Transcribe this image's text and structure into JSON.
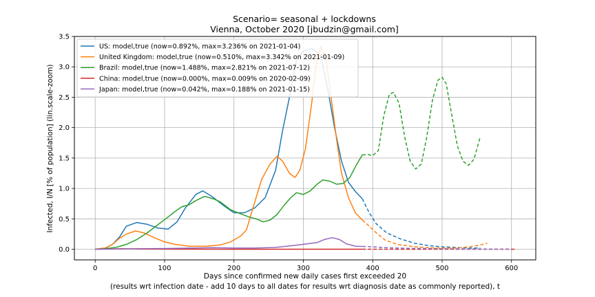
{
  "chart_data": {
    "type": "line",
    "title": "Scenario= seasonal + lockdowns",
    "subtitle": "Vienna, October 2020 [jbudzin@gmail.com]",
    "xlabel_line1": "Days since confirmed new daily cases first exceeded 20",
    "xlabel_line2": "(results wrt infection date - add 10 days to all dates for results wrt diagnosis date as commonly reported), t",
    "ylabel": "Infected, I/N [% of population] (lin.scale-zoom)",
    "xlim": [
      -30,
      635
    ],
    "ylim": [
      -0.175,
      3.5
    ],
    "xticks": [
      0,
      100,
      200,
      300,
      400,
      500,
      600
    ],
    "xtick_labels": [
      "0",
      "100",
      "200",
      "300",
      "400",
      "500",
      "600"
    ],
    "yticks": [
      0.0,
      0.5,
      1.0,
      1.5,
      2.0,
      2.5,
      3.0,
      3.5
    ],
    "ytick_labels": [
      "0.0",
      "0.5",
      "1.0",
      "1.5",
      "2.0",
      "2.5",
      "3.0",
      "3.5"
    ],
    "grid": true,
    "legend_position": "top-left",
    "series": [
      {
        "name": "US: model,true (now=0.892%, max=3.236% on 2021-01-04)",
        "color": "#1f77b4",
        "solid": [
          [
            0,
            0
          ],
          [
            15,
            0.02
          ],
          [
            25,
            0.08
          ],
          [
            35,
            0.2
          ],
          [
            45,
            0.38
          ],
          [
            60,
            0.44
          ],
          [
            75,
            0.41
          ],
          [
            90,
            0.35
          ],
          [
            105,
            0.33
          ],
          [
            118,
            0.45
          ],
          [
            130,
            0.68
          ],
          [
            145,
            0.9
          ],
          [
            155,
            0.96
          ],
          [
            168,
            0.87
          ],
          [
            185,
            0.72
          ],
          [
            200,
            0.6
          ],
          [
            215,
            0.6
          ],
          [
            230,
            0.68
          ],
          [
            245,
            0.85
          ],
          [
            260,
            1.3
          ],
          [
            270,
            1.95
          ],
          [
            280,
            2.5
          ],
          [
            290,
            3.1
          ],
          [
            300,
            3.26
          ],
          [
            312,
            3.3
          ],
          [
            325,
            3.2
          ],
          [
            335,
            2.65
          ],
          [
            345,
            2.0
          ],
          [
            355,
            1.45
          ],
          [
            365,
            1.1
          ],
          [
            375,
            0.95
          ],
          [
            385,
            0.83
          ]
        ],
        "dashed": [
          [
            385,
            0.83
          ],
          [
            395,
            0.6
          ],
          [
            405,
            0.42
          ],
          [
            420,
            0.27
          ],
          [
            440,
            0.17
          ],
          [
            460,
            0.1
          ],
          [
            480,
            0.06
          ],
          [
            500,
            0.04
          ],
          [
            520,
            0.03
          ],
          [
            540,
            0.02
          ],
          [
            555,
            0.02
          ]
        ]
      },
      {
        "name": "United Kingdom: model,true (now=0.510%, max=3.342% on 2021-01-09)",
        "color": "#ff7f0e",
        "solid": [
          [
            0,
            0
          ],
          [
            15,
            0.02
          ],
          [
            25,
            0.08
          ],
          [
            35,
            0.18
          ],
          [
            45,
            0.25
          ],
          [
            58,
            0.3
          ],
          [
            70,
            0.27
          ],
          [
            85,
            0.19
          ],
          [
            100,
            0.12
          ],
          [
            115,
            0.08
          ],
          [
            135,
            0.05
          ],
          [
            160,
            0.05
          ],
          [
            180,
            0.07
          ],
          [
            195,
            0.12
          ],
          [
            210,
            0.22
          ],
          [
            218,
            0.32
          ],
          [
            228,
            0.7
          ],
          [
            240,
            1.15
          ],
          [
            252,
            1.4
          ],
          [
            262,
            1.53
          ],
          [
            270,
            1.45
          ],
          [
            280,
            1.25
          ],
          [
            288,
            1.18
          ],
          [
            295,
            1.3
          ],
          [
            303,
            1.65
          ],
          [
            312,
            2.4
          ],
          [
            318,
            3.0
          ],
          [
            325,
            3.34
          ],
          [
            333,
            3.1
          ],
          [
            340,
            2.5
          ],
          [
            348,
            1.8
          ],
          [
            355,
            1.25
          ],
          [
            365,
            0.85
          ],
          [
            375,
            0.6
          ],
          [
            385,
            0.48
          ]
        ],
        "dashed": [
          [
            385,
            0.48
          ],
          [
            395,
            0.38
          ],
          [
            405,
            0.27
          ],
          [
            418,
            0.15
          ],
          [
            435,
            0.08
          ],
          [
            460,
            0.04
          ],
          [
            490,
            0.02
          ],
          [
            520,
            0.02
          ],
          [
            540,
            0.04
          ],
          [
            555,
            0.07
          ],
          [
            565,
            0.1
          ]
        ]
      },
      {
        "name": "Brazil: model,true (now=1.488%, max=2.821% on 2021-07-12)",
        "color": "#2ca02c",
        "solid": [
          [
            0,
            0
          ],
          [
            15,
            0.01
          ],
          [
            30,
            0.03
          ],
          [
            45,
            0.08
          ],
          [
            60,
            0.16
          ],
          [
            75,
            0.27
          ],
          [
            90,
            0.4
          ],
          [
            105,
            0.53
          ],
          [
            115,
            0.62
          ],
          [
            125,
            0.7
          ],
          [
            135,
            0.73
          ],
          [
            145,
            0.8
          ],
          [
            158,
            0.87
          ],
          [
            170,
            0.83
          ],
          [
            180,
            0.78
          ],
          [
            195,
            0.65
          ],
          [
            210,
            0.58
          ],
          [
            222,
            0.53
          ],
          [
            232,
            0.5
          ],
          [
            242,
            0.45
          ],
          [
            252,
            0.48
          ],
          [
            262,
            0.57
          ],
          [
            272,
            0.72
          ],
          [
            282,
            0.85
          ],
          [
            290,
            0.93
          ],
          [
            300,
            0.9
          ],
          [
            310,
            0.96
          ],
          [
            320,
            1.07
          ],
          [
            328,
            1.14
          ],
          [
            338,
            1.12
          ],
          [
            348,
            1.07
          ],
          [
            357,
            1.08
          ],
          [
            367,
            1.18
          ],
          [
            377,
            1.4
          ],
          [
            385,
            1.55
          ]
        ],
        "dashed": [
          [
            385,
            1.55
          ],
          [
            392,
            1.56
          ],
          [
            400,
            1.54
          ],
          [
            408,
            1.62
          ],
          [
            416,
            2.2
          ],
          [
            424,
            2.55
          ],
          [
            430,
            2.58
          ],
          [
            438,
            2.4
          ],
          [
            446,
            1.85
          ],
          [
            454,
            1.45
          ],
          [
            462,
            1.32
          ],
          [
            470,
            1.4
          ],
          [
            478,
            1.85
          ],
          [
            486,
            2.45
          ],
          [
            494,
            2.78
          ],
          [
            500,
            2.83
          ],
          [
            506,
            2.72
          ],
          [
            514,
            2.2
          ],
          [
            522,
            1.7
          ],
          [
            530,
            1.45
          ],
          [
            538,
            1.38
          ],
          [
            546,
            1.48
          ],
          [
            555,
            1.85
          ]
        ]
      },
      {
        "name": "China: model,true (now=0.000%, max=0.009% on 2020-02-09)",
        "color": "#d62728",
        "solid": [
          [
            0,
            0
          ],
          [
            20,
            0.005
          ],
          [
            40,
            0.009
          ],
          [
            60,
            0.005
          ],
          [
            80,
            0.002
          ],
          [
            120,
            0.001
          ],
          [
            200,
            0
          ],
          [
            300,
            0
          ],
          [
            385,
            0
          ]
        ],
        "dashed": [
          [
            385,
            0
          ],
          [
            480,
            0
          ],
          [
            605,
            0
          ]
        ]
      },
      {
        "name": "Japan: model,true (now=0.042%, max=0.188% on 2021-01-15)",
        "color": "#9467bd",
        "solid": [
          [
            0,
            0
          ],
          [
            30,
            0.003
          ],
          [
            60,
            0.008
          ],
          [
            100,
            0.012
          ],
          [
            140,
            0.02
          ],
          [
            170,
            0.025
          ],
          [
            200,
            0.02
          ],
          [
            230,
            0.02
          ],
          [
            260,
            0.03
          ],
          [
            280,
            0.055
          ],
          [
            300,
            0.08
          ],
          [
            320,
            0.11
          ],
          [
            330,
            0.16
          ],
          [
            342,
            0.19
          ],
          [
            352,
            0.16
          ],
          [
            362,
            0.09
          ],
          [
            375,
            0.05
          ],
          [
            385,
            0.045
          ]
        ],
        "dashed": [
          [
            385,
            0.045
          ],
          [
            400,
            0.04
          ],
          [
            420,
            0.025
          ],
          [
            450,
            0.015
          ],
          [
            500,
            0.008
          ],
          [
            560,
            0.003
          ],
          [
            600,
            0.001
          ]
        ]
      }
    ]
  }
}
